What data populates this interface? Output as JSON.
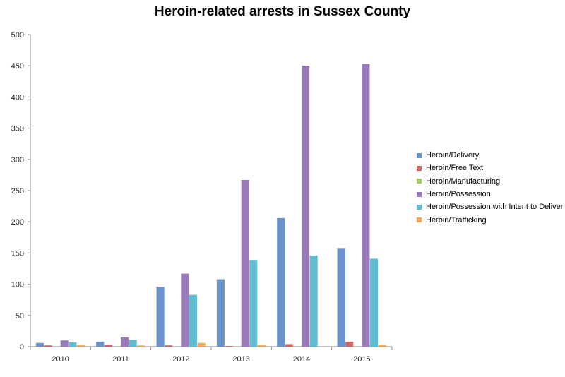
{
  "chart_data": {
    "type": "bar",
    "title": "Heroin-related arrests in Sussex County",
    "xlabel": "",
    "ylabel": "",
    "ylim": [
      0,
      500
    ],
    "yticks": [
      0,
      50,
      100,
      150,
      200,
      250,
      300,
      350,
      400,
      450,
      500
    ],
    "grid": false,
    "legend_position": "right",
    "categories": [
      "2010",
      "2011",
      "2012",
      "2013",
      "2014",
      "2015"
    ],
    "series": [
      {
        "name": "Heroin/Delivery",
        "color": "#6b93cb",
        "values": [
          6,
          8,
          96,
          108,
          206,
          158
        ]
      },
      {
        "name": "Heroin/Free Text",
        "color": "#cd6664",
        "values": [
          2,
          3,
          2,
          1,
          4,
          8
        ]
      },
      {
        "name": "Heroin/Manufacturing",
        "color": "#a6c86b",
        "values": [
          0,
          0,
          0,
          0,
          0,
          0
        ]
      },
      {
        "name": "Heroin/Possession",
        "color": "#9a7ab8",
        "values": [
          10,
          15,
          117,
          267,
          450,
          453
        ]
      },
      {
        "name": "Heroin/Possession with Intent to Deliver",
        "color": "#62bdd1",
        "values": [
          7,
          11,
          83,
          139,
          146,
          141
        ]
      },
      {
        "name": "Heroin/Trafficking",
        "color": "#f2a957",
        "values": [
          3,
          2,
          6,
          3,
          0,
          3
        ]
      }
    ]
  }
}
